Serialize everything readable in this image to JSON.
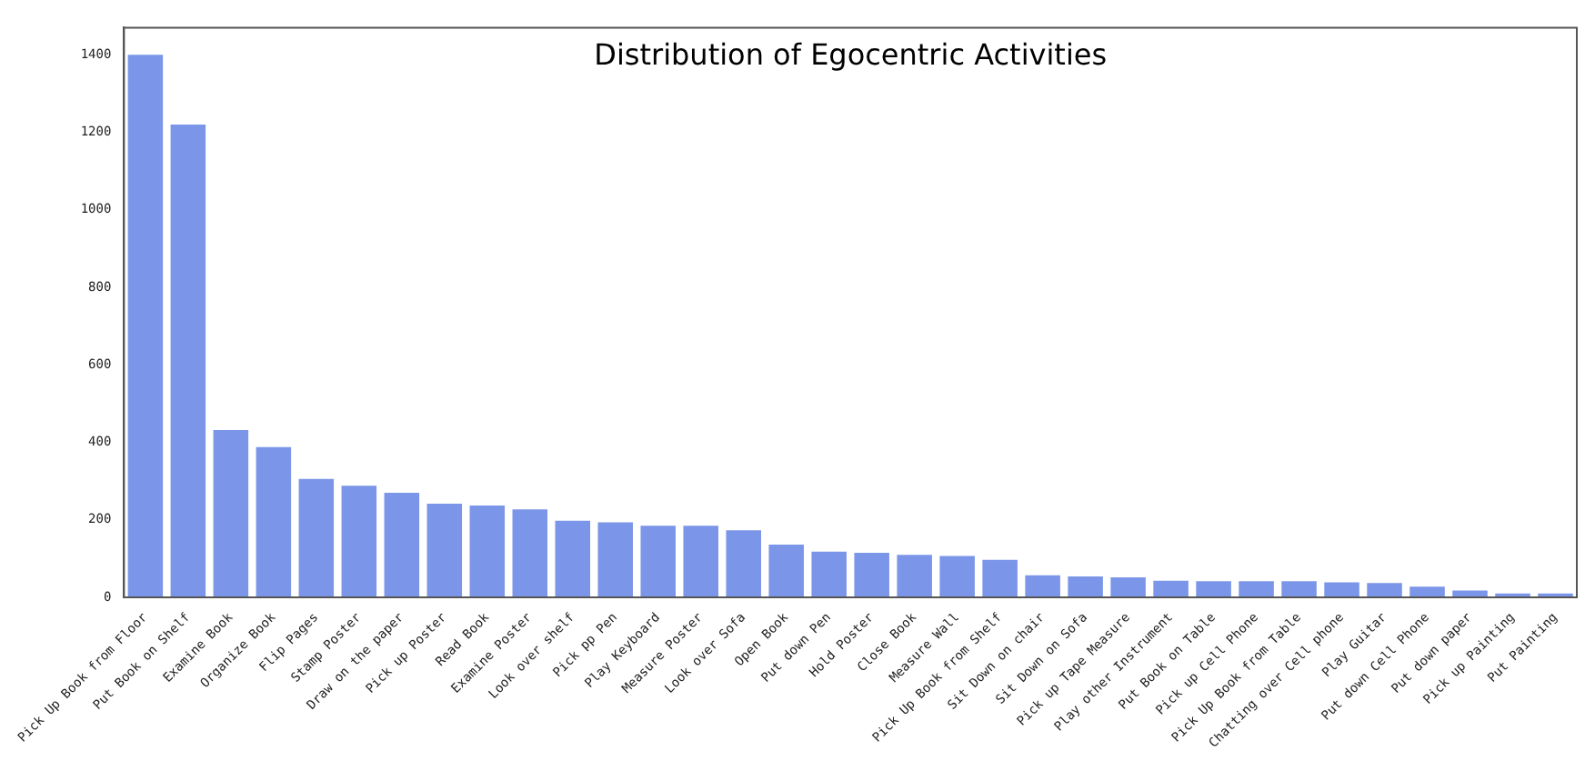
{
  "chart_data": {
    "type": "bar",
    "title": "Distribution of Egocentric Activities",
    "categories": [
      "Pick Up Book from Floor",
      "Put Book on Shelf",
      "Examine Book",
      "Organize Book",
      "Flip Pages",
      "Stamp Poster",
      "Draw on the paper",
      "Pick up Poster",
      "Read Book",
      "Examine Poster",
      "Look over shelf",
      "Pick pp Pen",
      "Play Keyboard",
      "Measure Poster",
      "Look over Sofa",
      "Open Book",
      "Put down Pen",
      "Hold Poster",
      "Close Book",
      "Measure Wall",
      "Pick Up Book from Shelf",
      "Sit Down on chair",
      "Sit Down on Sofa",
      "Pick up Tape Measure",
      "Play other Instrument",
      "Put Book on Table",
      "Pick up Cell Phone",
      "Pick Up Book from Table",
      "Chatting over Cell phone",
      "Play Guitar",
      "Put down Cell Phone",
      "Put down paper",
      "Pick up Painting",
      "Put Painting"
    ],
    "values": [
      1400,
      1220,
      432,
      388,
      306,
      288,
      270,
      242,
      237,
      227,
      198,
      194,
      185,
      185,
      173,
      136,
      118,
      115,
      110,
      107,
      97,
      57,
      54,
      52,
      43,
      42,
      42,
      42,
      39,
      37,
      28,
      18,
      10,
      10
    ],
    "color": "#7b96e8",
    "ylim": [
      0,
      1470
    ],
    "yticks": [
      0,
      200,
      400,
      600,
      800,
      1000,
      1200,
      1400
    ],
    "grid": false,
    "legend": false
  }
}
